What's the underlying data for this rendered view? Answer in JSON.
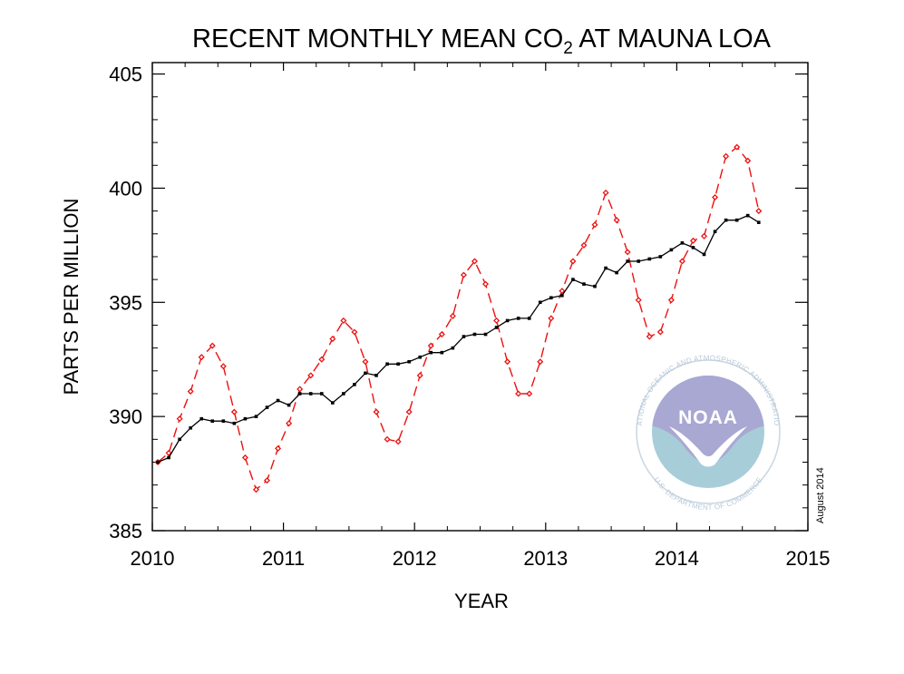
{
  "chart_data": {
    "type": "line",
    "title": "RECENT MONTHLY MEAN CO",
    "title_subscript": "2",
    "title_suffix": " AT MAUNA LOA",
    "xlabel": "YEAR",
    "ylabel": "PARTS PER MILLION",
    "xlim": [
      2010,
      2015
    ],
    "ylim": [
      385,
      405.5
    ],
    "x_ticks": [
      2010,
      2011,
      2012,
      2013,
      2014,
      2015
    ],
    "x_tick_labels": [
      "2010",
      "2011",
      "2012",
      "2013",
      "2014",
      "2015"
    ],
    "y_ticks": [
      385,
      390,
      395,
      400,
      405
    ],
    "y_tick_labels": [
      "385",
      "390",
      "395",
      "400",
      "405"
    ],
    "date_note": "August 2014",
    "grid": false,
    "x": [
      2010.0417,
      2010.125,
      2010.2083,
      2010.2917,
      2010.375,
      2010.4583,
      2010.5417,
      2010.625,
      2010.7083,
      2010.7917,
      2010.875,
      2010.9583,
      2011.0417,
      2011.125,
      2011.2083,
      2011.2917,
      2011.375,
      2011.4583,
      2011.5417,
      2011.625,
      2011.7083,
      2011.7917,
      2011.875,
      2011.9583,
      2012.0417,
      2012.125,
      2012.2083,
      2012.2917,
      2012.375,
      2012.4583,
      2012.5417,
      2012.625,
      2012.7083,
      2012.7917,
      2012.875,
      2012.9583,
      2013.0417,
      2013.125,
      2013.2083,
      2013.2917,
      2013.375,
      2013.4583,
      2013.5417,
      2013.625,
      2013.7083,
      2013.7917,
      2013.875,
      2013.9583,
      2014.0417,
      2014.125,
      2014.2083,
      2014.2917,
      2014.375,
      2014.4583,
      2014.5417,
      2014.625
    ],
    "series": [
      {
        "color": "#ee1111",
        "style": "dashed",
        "marker": "diamond",
        "values": [
          388.0,
          388.4,
          389.9,
          391.1,
          392.6,
          393.1,
          392.2,
          390.2,
          388.2,
          386.8,
          387.2,
          388.6,
          389.7,
          391.2,
          391.8,
          392.5,
          393.4,
          394.2,
          393.7,
          392.4,
          390.2,
          389.0,
          388.9,
          390.2,
          391.8,
          393.1,
          393.6,
          394.4,
          396.2,
          396.8,
          395.8,
          394.2,
          392.4,
          391.0,
          391.0,
          392.4,
          394.3,
          395.5,
          396.8,
          397.5,
          398.4,
          399.8,
          398.6,
          397.2,
          395.1,
          393.5,
          393.7,
          395.1,
          396.8,
          397.7,
          397.9,
          399.6,
          401.4,
          401.8,
          401.2,
          399.0
        ]
      },
      {
        "color": "#000000",
        "style": "solid",
        "marker": "square",
        "values": [
          388.0,
          388.2,
          389.0,
          389.5,
          389.9,
          389.8,
          389.8,
          389.7,
          389.9,
          390.0,
          390.4,
          390.7,
          390.5,
          391.0,
          391.0,
          391.0,
          390.6,
          391.0,
          391.4,
          391.9,
          391.8,
          392.3,
          392.3,
          392.4,
          392.6,
          392.8,
          392.8,
          393.0,
          393.5,
          393.6,
          393.6,
          393.9,
          394.2,
          394.3,
          394.3,
          395.0,
          395.2,
          395.3,
          396.0,
          395.8,
          395.7,
          396.5,
          396.3,
          396.8,
          396.8,
          396.9,
          397.0,
          397.3,
          397.6,
          397.4,
          397.1,
          398.1,
          398.6,
          398.6,
          398.8,
          398.5
        ]
      }
    ]
  },
  "logo": {
    "center_word": "NOAA",
    "ring_top": "NATIONAL OCEANIC AND ATMOSPHERIC ADMINISTRATION",
    "ring_bottom": "U.S. DEPARTMENT OF COMMERCE",
    "sky_color": "#a9a8d3",
    "sea_color": "#a7cdd8"
  }
}
